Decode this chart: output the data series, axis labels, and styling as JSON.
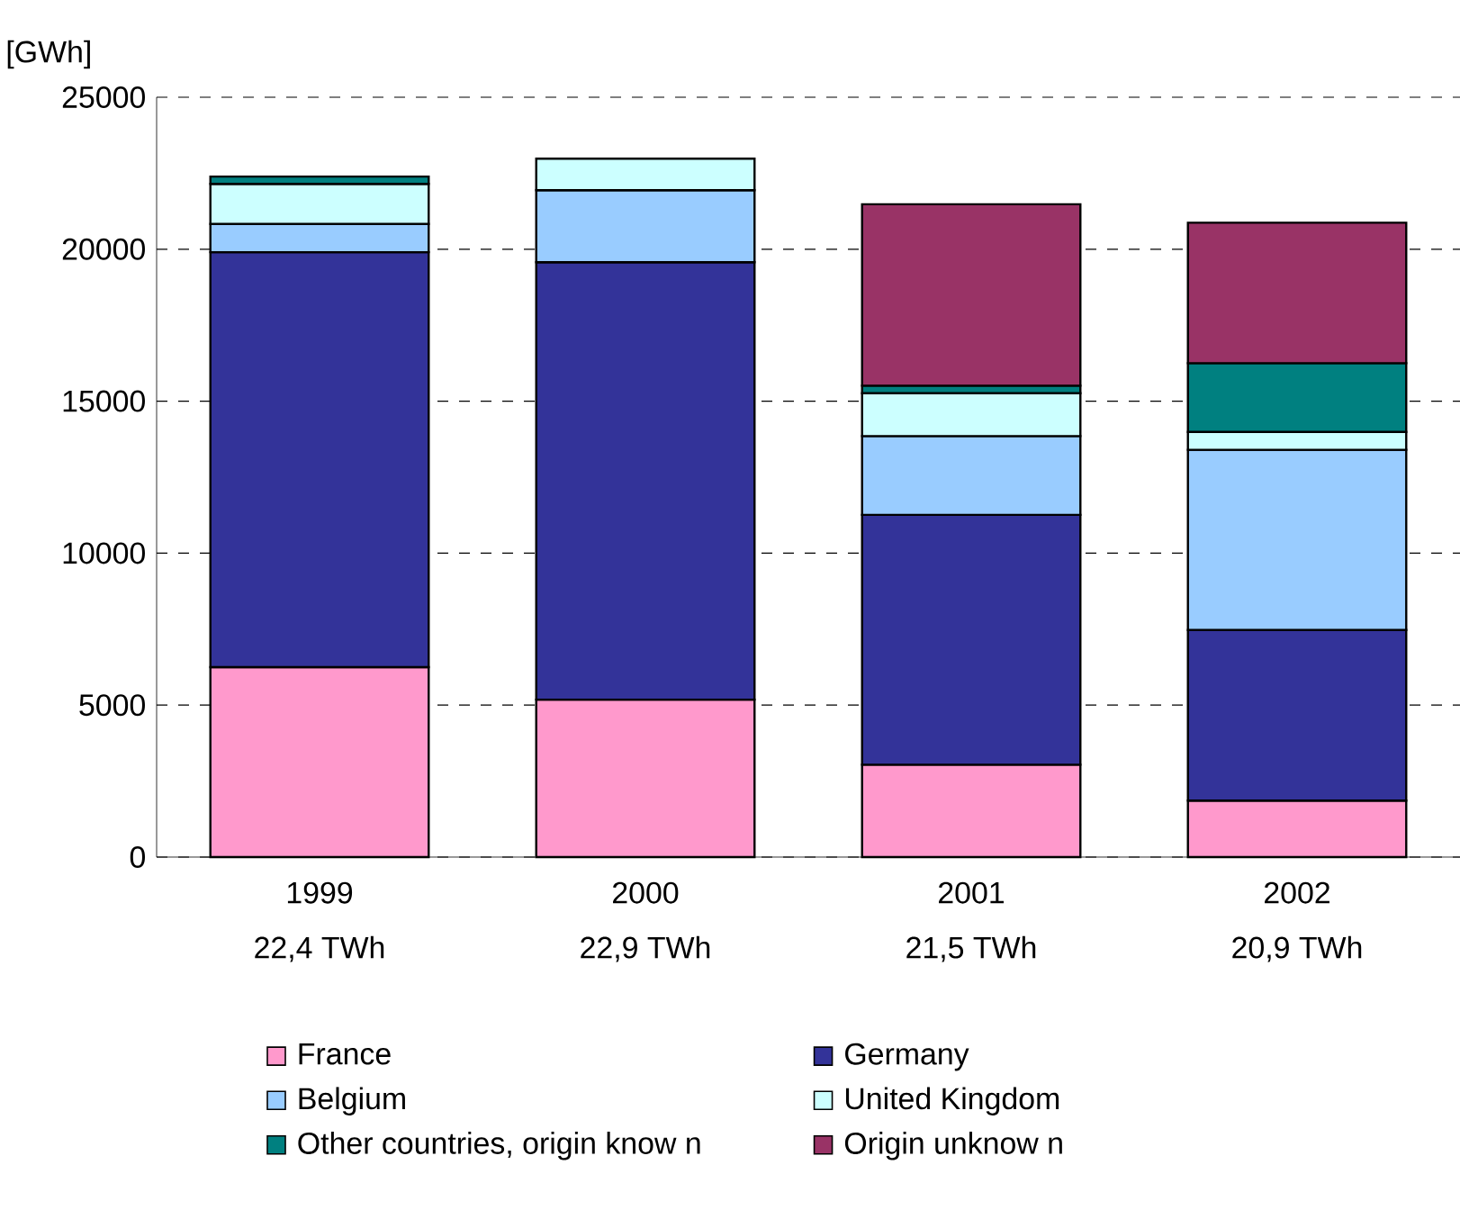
{
  "chart_data": {
    "type": "bar",
    "stacked": true,
    "ylabel": "[GWh]",
    "categories": [
      "1999",
      "2000",
      "2001",
      "2002"
    ],
    "annotations": [
      "22,4 TWh",
      "22,9 TWh",
      "21,5 TWh",
      "20,9 TWh"
    ],
    "series": [
      {
        "name": "France",
        "color": "#ff99cc",
        "values": [
          6250,
          5180,
          3040,
          1860
        ]
      },
      {
        "name": "Germany",
        "color": "#333399",
        "values": [
          13650,
          14390,
          8220,
          5610
        ]
      },
      {
        "name": "Belgium",
        "color": "#99ccff",
        "values": [
          930,
          2370,
          2590,
          5930
        ]
      },
      {
        "name": "United Kingdom",
        "color": "#ccffff",
        "values": [
          1320,
          1040,
          1410,
          590
        ]
      },
      {
        "name": "Other countries, origin know n",
        "color": "#008080",
        "values": [
          240,
          null,
          250,
          2260
        ]
      },
      {
        "name": "Origin unknow n",
        "color": "#993366",
        "values": [
          null,
          null,
          5970,
          4620
        ]
      }
    ],
    "ylim": [
      0,
      25000
    ],
    "yticks": [
      0,
      5000,
      10000,
      15000,
      20000,
      25000
    ],
    "grid": "y",
    "legend": "bottom"
  }
}
